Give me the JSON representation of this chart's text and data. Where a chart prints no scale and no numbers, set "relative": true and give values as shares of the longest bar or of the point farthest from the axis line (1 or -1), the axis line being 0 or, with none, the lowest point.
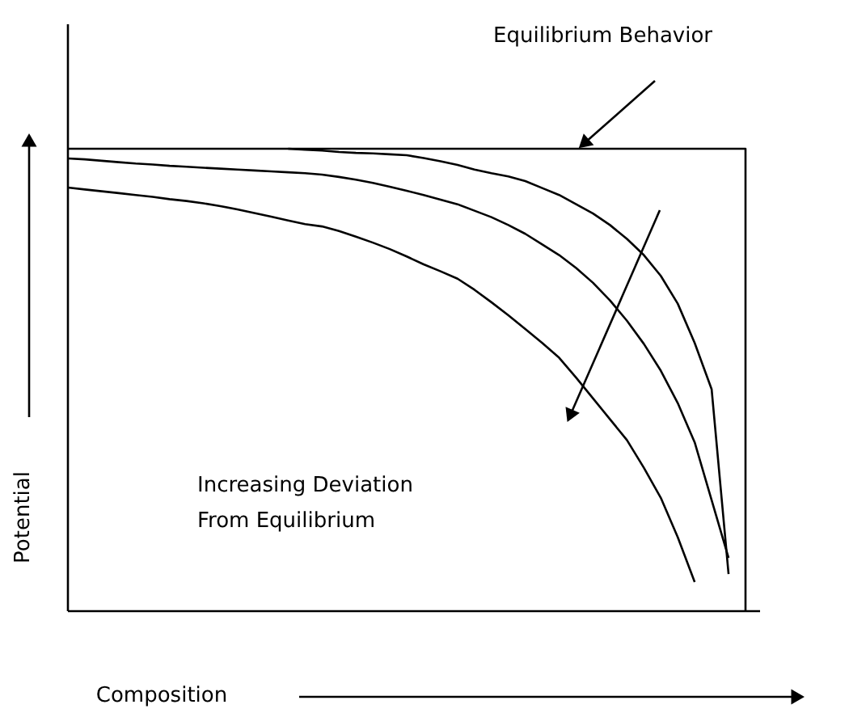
{
  "chart_data": {
    "type": "line",
    "relative": true,
    "xlabel": "Composition",
    "ylabel": "Potential",
    "annotations": [
      "Equilibrium Behavior",
      "Increasing Deviation\nFrom Equilibrium"
    ],
    "categories": [
      null,
      null,
      null,
      null,
      null,
      null,
      null,
      null,
      null,
      null,
      null,
      null,
      null,
      null,
      null,
      null,
      null,
      null,
      null,
      null,
      null,
      null,
      null,
      null,
      null,
      null,
      null,
      null,
      null,
      null,
      null,
      null,
      null,
      null,
      null,
      null,
      null,
      null,
      null,
      null,
      null
    ],
    "series": [
      {
        "color": "#000000",
        "type": "step",
        "values": [
          1,
          1,
          1,
          1,
          1,
          1,
          1,
          1,
          1,
          1,
          1,
          1,
          1,
          1,
          1,
          1,
          1,
          1,
          1,
          1,
          1,
          1,
          1,
          1,
          1,
          1,
          1,
          1,
          1,
          1,
          1,
          1,
          1,
          1,
          1,
          1,
          1,
          1,
          1,
          1,
          0
        ]
      },
      {
        "color": "#000000",
        "values": [
          null,
          null,
          null,
          null,
          null,
          null,
          null,
          null,
          null,
          null,
          null,
          null,
          null,
          1.0,
          0.998,
          0.996,
          0.993,
          0.991,
          0.99,
          0.988,
          0.986,
          0.98,
          0.973,
          0.965,
          0.955,
          0.947,
          0.94,
          0.93,
          0.915,
          0.9,
          0.88,
          0.86,
          0.835,
          0.805,
          0.77,
          0.725,
          0.665,
          0.58,
          0.48,
          0.08,
          null
        ]
      },
      {
        "color": "#000000",
        "values": [
          0.979,
          0.977,
          0.974,
          0.971,
          0.968,
          0.966,
          0.963,
          0.961,
          0.959,
          0.957,
          0.955,
          0.953,
          0.951,
          0.949,
          0.947,
          0.944,
          0.939,
          0.933,
          0.926,
          0.918,
          0.909,
          0.9,
          0.89,
          0.88,
          0.866,
          0.852,
          0.835,
          0.816,
          0.793,
          0.77,
          0.742,
          0.71,
          0.672,
          0.628,
          0.578,
          0.52,
          0.45,
          0.365,
          0.24,
          0.115,
          null
        ]
      },
      {
        "color": "#000000",
        "values": [
          0.916,
          0.912,
          0.908,
          0.904,
          0.9,
          0.896,
          0.891,
          0.887,
          0.882,
          0.876,
          0.869,
          0.861,
          0.853,
          0.845,
          0.837,
          0.832,
          0.822,
          0.81,
          0.797,
          0.783,
          0.767,
          0.75,
          0.735,
          0.719,
          0.695,
          0.668,
          0.64,
          0.61,
          0.58,
          0.548,
          0.505,
          0.46,
          0.415,
          0.37,
          0.31,
          0.245,
          0.16,
          0.063,
          null,
          null,
          null
        ]
      }
    ]
  }
}
